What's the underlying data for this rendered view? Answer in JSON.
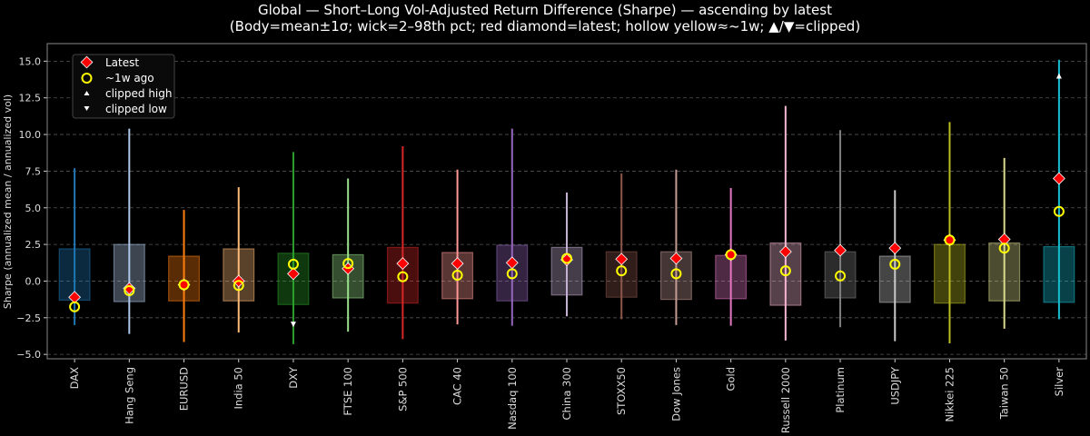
{
  "chart_data": {
    "type": "box",
    "title": "Global — Short–Long Vol-Adjusted Return Difference (Sharpe) — ascending by latest",
    "subtitle": "(Body=mean±1σ; wick=2–98th pct; red diamond=latest; hollow yellow≈~1w; ▲/▼=clipped)",
    "xlabel": "",
    "ylabel": "Sharpe (annualized mean / annualized vol)",
    "ylim": [
      -5.3,
      16.2
    ],
    "yticks": [
      -5.0,
      -2.5,
      0.0,
      2.5,
      5.0,
      7.5,
      10.0,
      12.5,
      15.0
    ],
    "ytick_labels": [
      "−5.0",
      "−2.5",
      "0.0",
      "2.5",
      "5.0",
      "7.5",
      "10.0",
      "12.5",
      "15.0"
    ],
    "grid": "horizontal dashed",
    "legend_position": "top-left",
    "legend": [
      {
        "label": "Latest",
        "marker": "red-diamond"
      },
      {
        "label": "~1w ago",
        "marker": "hollow-yellow-circle"
      },
      {
        "label": "clipped high",
        "marker": "white-triangle-up"
      },
      {
        "label": "clipped low",
        "marker": "white-triangle-down"
      }
    ],
    "categories": [
      "DAX",
      "Hang Seng",
      "EURUSD",
      "India 50",
      "DXY",
      "FTSE 100",
      "S&P 500",
      "CAC 40",
      "Nasdaq 100",
      "China 300",
      "STOXX50",
      "Dow Jones",
      "Gold",
      "Russell 2000",
      "Platinum",
      "USDJPY",
      "Nikkei 225",
      "Taiwan 50",
      "Silver"
    ],
    "colors": [
      "#1f77b4",
      "#aec7e8",
      "#ff7f0e",
      "#ffbb78",
      "#2ca02c",
      "#98df8a",
      "#d62728",
      "#ff9896",
      "#9467bd",
      "#c5b0d5",
      "#8c564b",
      "#c49c94",
      "#e377c2",
      "#f7b6d2",
      "#7f7f7f",
      "#c7c7c7",
      "#bcbd22",
      "#dbdb8d",
      "#17becf"
    ],
    "body_high": [
      2.2,
      2.5,
      1.7,
      2.2,
      1.9,
      1.8,
      2.3,
      1.95,
      2.45,
      2.3,
      2.0,
      2.0,
      1.75,
      2.6,
      2.0,
      1.7,
      2.5,
      2.6,
      2.35
    ],
    "body_low": [
      -1.3,
      -1.4,
      -1.35,
      -1.35,
      -1.6,
      -1.15,
      -1.5,
      -1.2,
      -1.35,
      -0.95,
      -1.1,
      -1.25,
      -1.2,
      -1.65,
      -1.15,
      -1.45,
      -1.5,
      -1.35,
      -1.45
    ],
    "wick_high": [
      7.7,
      10.4,
      4.85,
      6.4,
      8.8,
      7.0,
      9.2,
      7.6,
      10.4,
      6.05,
      7.35,
      7.6,
      6.35,
      11.95,
      10.3,
      6.2,
      10.85,
      8.4,
      15.1
    ],
    "wick_low": [
      -3.0,
      -3.6,
      -4.15,
      -3.5,
      -4.3,
      -3.45,
      -3.95,
      -2.95,
      -3.05,
      -2.4,
      -2.6,
      -3.0,
      -3.05,
      -4.05,
      -3.15,
      -4.1,
      -4.25,
      -3.25,
      -2.6
    ],
    "latest": [
      -1.1,
      -0.5,
      -0.25,
      0.0,
      0.5,
      0.85,
      1.2,
      1.2,
      1.25,
      1.45,
      1.5,
      1.55,
      1.8,
      2.0,
      2.1,
      2.25,
      2.8,
      2.85,
      7.0
    ],
    "week_ago": [
      -1.75,
      -0.65,
      -0.25,
      -0.3,
      1.15,
      1.2,
      0.3,
      0.4,
      0.5,
      1.55,
      0.7,
      0.5,
      1.8,
      0.7,
      0.35,
      1.15,
      2.8,
      2.25,
      4.75
    ],
    "clipped_high": [
      {
        "category": "Silver",
        "value": 14.0
      }
    ],
    "clipped_low": [
      {
        "category": "DXY",
        "value": -2.95
      }
    ]
  }
}
